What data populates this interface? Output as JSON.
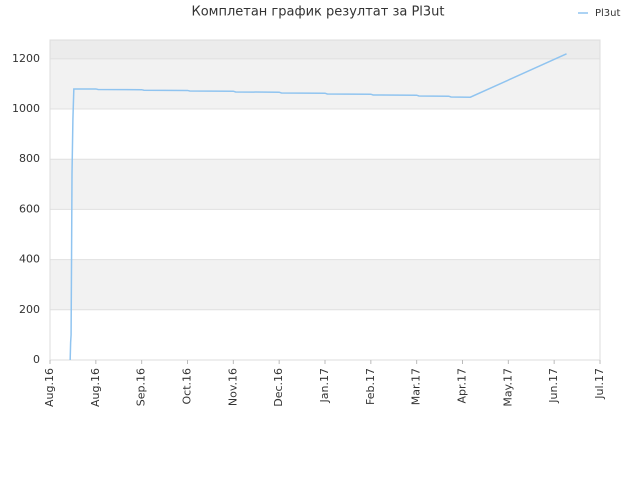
{
  "chart_data": {
    "type": "line",
    "title": "Комплетан график резултат за Pl3ut",
    "xlim": [
      0,
      12
    ],
    "ylim": [
      0,
      1275
    ],
    "xticks": [
      {
        "value": 0,
        "label": "Aug.16"
      },
      {
        "value": 1,
        "label": "Aug.16"
      },
      {
        "value": 2,
        "label": "Sep.16"
      },
      {
        "value": 3,
        "label": "Oct.16"
      },
      {
        "value": 4,
        "label": "Nov.16"
      },
      {
        "value": 5,
        "label": "Dec.16"
      },
      {
        "value": 6,
        "label": "Jan.17"
      },
      {
        "value": 7,
        "label": "Feb.17"
      },
      {
        "value": 8,
        "label": "Mar.17"
      },
      {
        "value": 9,
        "label": "Apr.17"
      },
      {
        "value": 10,
        "label": "May.17"
      },
      {
        "value": 11,
        "label": "Jun.17"
      },
      {
        "value": 12,
        "label": "Jul.17"
      }
    ],
    "yticks": [
      0,
      200,
      400,
      600,
      800,
      1000,
      1200
    ],
    "grid": true,
    "legend": "top-right",
    "series": [
      {
        "name": "Pl3ut",
        "color": "#90c4f0",
        "x": [
          0.44,
          0.45,
          0.46,
          0.47,
          0.48,
          0.5,
          0.52,
          1.0,
          1.05,
          2.0,
          2.05,
          3.0,
          3.05,
          4.0,
          4.05,
          5.0,
          5.05,
          6.0,
          6.05,
          7.0,
          7.05,
          8.0,
          8.05,
          8.7,
          8.75,
          9.17,
          11.27
        ],
        "values": [
          0,
          70,
          100,
          400,
          740,
          960,
          1080,
          1080,
          1078,
          1077,
          1075,
          1074,
          1072,
          1071,
          1068,
          1067,
          1064,
          1063,
          1060,
          1059,
          1056,
          1055,
          1052,
          1051,
          1048,
          1047,
          1220
        ]
      }
    ]
  }
}
